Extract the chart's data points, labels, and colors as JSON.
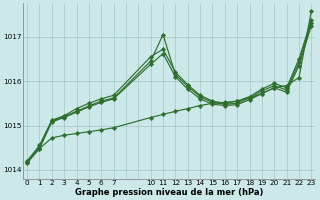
{
  "title": "Graphe pression niveau de la mer (hPa)",
  "bg_color": "#cce8e8",
  "grid_color": "#aacccc",
  "line_color": "#2d6e2d",
  "text_color": "#000000",
  "ylim": [
    1013.8,
    1017.75
  ],
  "yticks": [
    1014,
    1015,
    1016,
    1017
  ],
  "xlim": [
    -0.3,
    23.3
  ],
  "xtick_labels": [
    "0",
    "1",
    "2",
    "3",
    "4",
    "5",
    "6",
    "7",
    "",
    "",
    "10",
    "11",
    "12",
    "13",
    "14",
    "15",
    "16",
    "17",
    "18",
    "19",
    "20",
    "21",
    "22",
    "23"
  ],
  "xtick_pos": [
    0,
    1,
    2,
    3,
    4,
    5,
    6,
    7,
    8,
    9,
    10,
    11,
    12,
    13,
    14,
    15,
    16,
    17,
    18,
    19,
    20,
    21,
    22,
    23
  ],
  "series1": {
    "x": [
      0,
      1,
      2,
      3,
      4,
      5,
      6,
      7,
      10,
      11,
      12,
      13,
      14,
      15,
      16,
      17,
      18,
      19,
      20,
      21,
      22,
      23
    ],
    "y": [
      1014.2,
      1014.55,
      1015.12,
      1015.22,
      1015.38,
      1015.5,
      1015.6,
      1015.68,
      1016.55,
      1016.72,
      1016.2,
      1015.92,
      1015.68,
      1015.55,
      1015.5,
      1015.55,
      1015.65,
      1015.82,
      1015.95,
      1015.85,
      1016.5,
      1017.38
    ]
  },
  "series2": {
    "x": [
      0,
      1,
      2,
      3,
      4,
      5,
      6,
      7,
      10,
      11,
      12,
      13,
      14,
      15,
      16,
      17,
      18,
      19,
      20,
      21,
      22,
      23
    ],
    "y": [
      1014.18,
      1014.5,
      1015.1,
      1015.2,
      1015.32,
      1015.44,
      1015.55,
      1015.62,
      1016.45,
      1017.05,
      1016.15,
      1015.88,
      1015.65,
      1015.52,
      1015.48,
      1015.5,
      1015.62,
      1015.78,
      1015.9,
      1015.8,
      1016.42,
      1017.32
    ]
  },
  "series3": {
    "x": [
      0,
      1,
      2,
      3,
      4,
      5,
      6,
      7,
      10,
      11,
      12,
      13,
      14,
      15,
      16,
      17,
      18,
      19,
      20,
      21,
      22,
      23
    ],
    "y": [
      1014.15,
      1014.48,
      1015.08,
      1015.18,
      1015.3,
      1015.42,
      1015.52,
      1015.6,
      1016.38,
      1016.62,
      1016.1,
      1015.82,
      1015.6,
      1015.48,
      1015.45,
      1015.47,
      1015.58,
      1015.72,
      1015.85,
      1015.75,
      1016.35,
      1017.25
    ]
  },
  "series4": {
    "x": [
      0,
      1,
      2,
      3,
      4,
      5,
      6,
      7,
      10,
      11,
      12,
      13,
      14,
      15,
      16,
      17,
      18,
      19,
      20,
      21,
      22,
      23
    ],
    "y": [
      1014.18,
      1014.48,
      1014.72,
      1014.78,
      1014.82,
      1014.86,
      1014.9,
      1014.95,
      1015.18,
      1015.25,
      1015.32,
      1015.38,
      1015.45,
      1015.5,
      1015.52,
      1015.55,
      1015.62,
      1015.72,
      1015.85,
      1015.9,
      1016.08,
      1017.58
    ]
  }
}
